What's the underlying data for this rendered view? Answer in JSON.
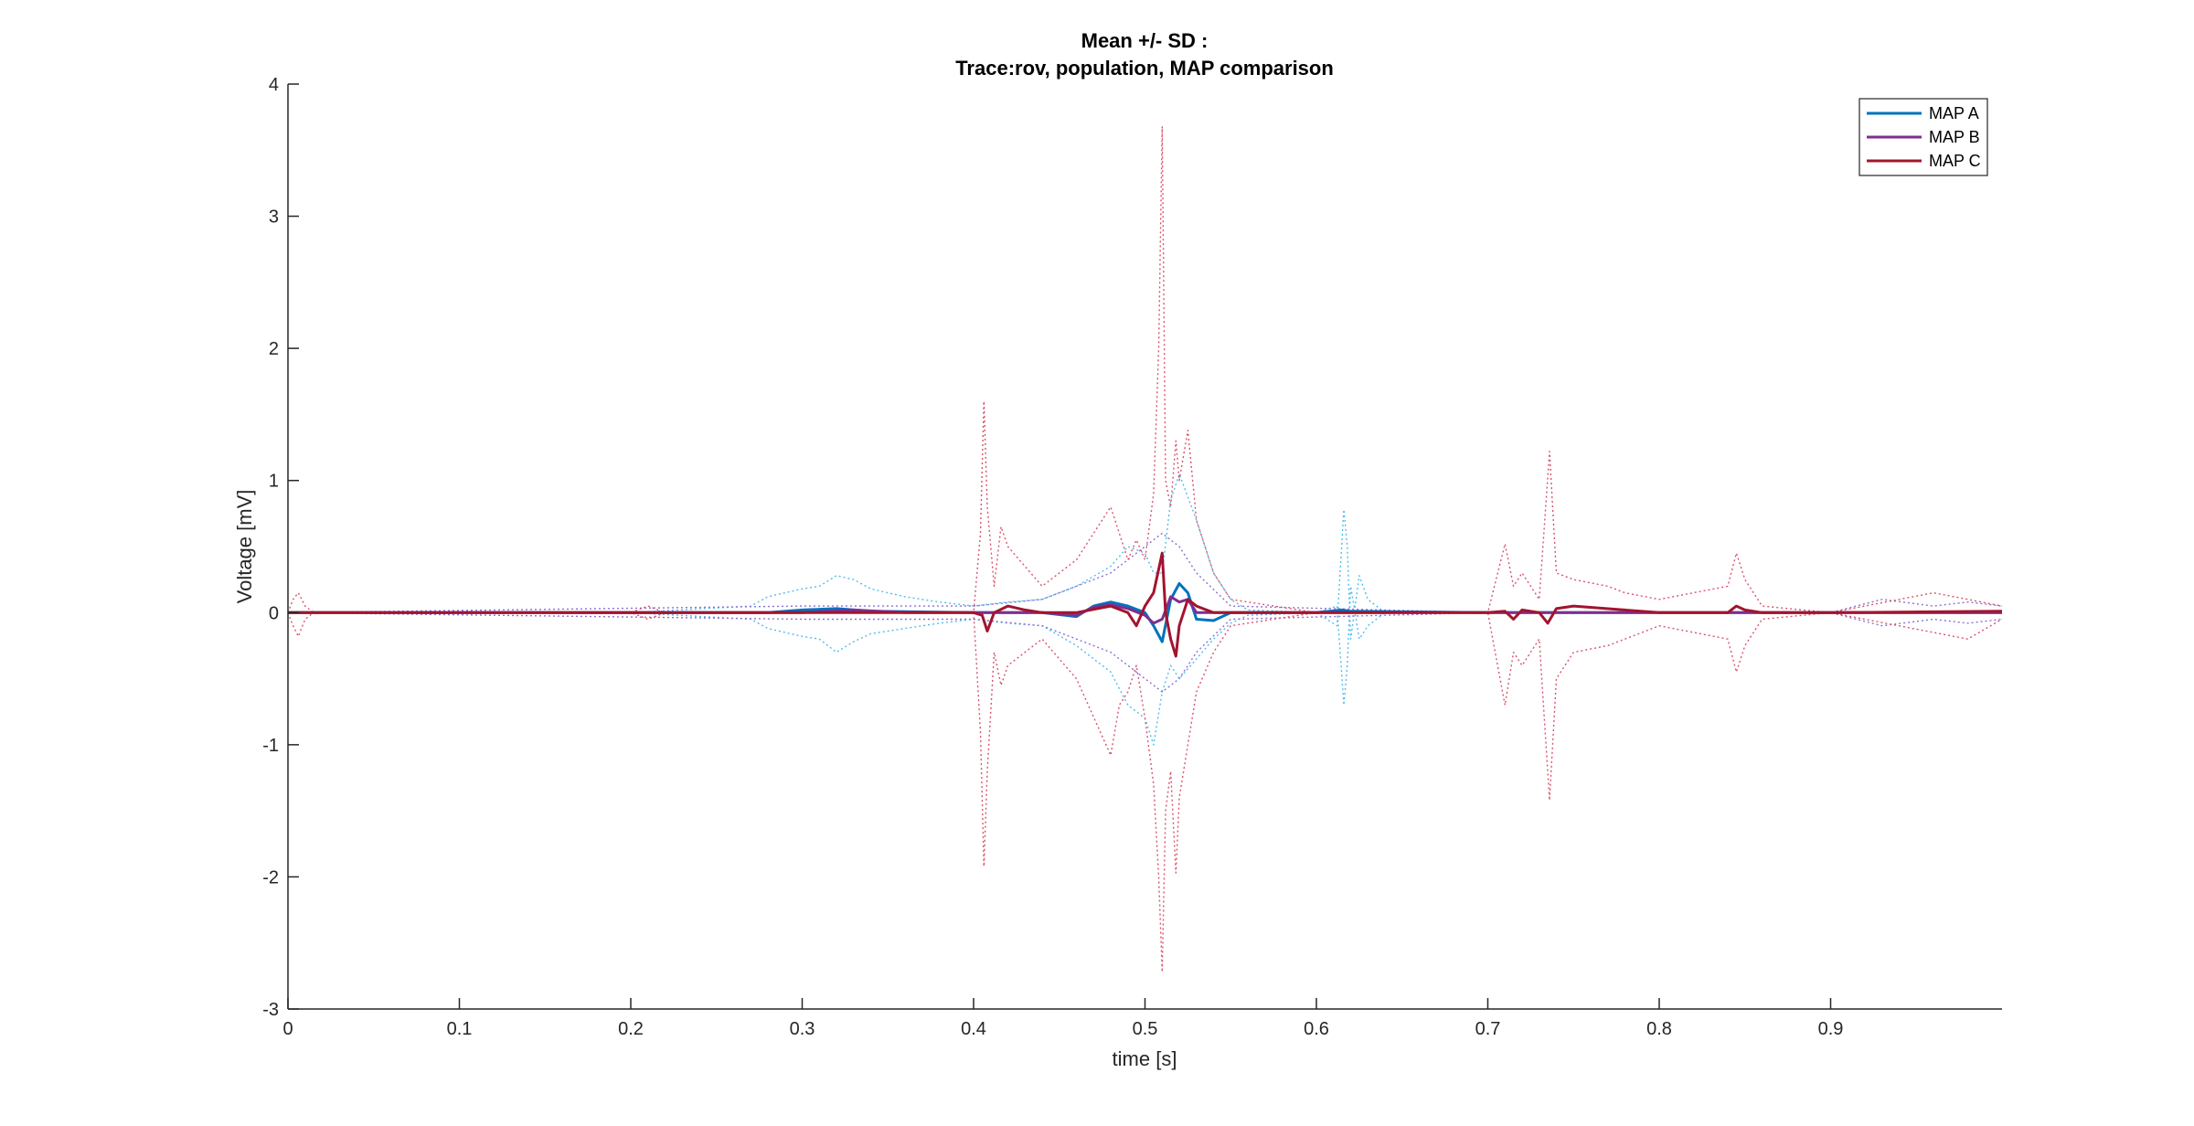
{
  "chart_data": {
    "type": "line",
    "title": "Mean +/- SD :",
    "subtitle": "Trace:rov, population, MAP comparison",
    "xlabel": "time [s]",
    "ylabel": "Voltage [mV]",
    "xlim": [
      0,
      1.0
    ],
    "ylim": [
      -3,
      4
    ],
    "xticks": [
      0,
      0.1,
      0.2,
      0.3,
      0.4,
      0.5,
      0.6,
      0.7,
      0.8,
      0.9
    ],
    "xtick_labels": [
      "0",
      "0.1",
      "0.2",
      "0.3",
      "0.4",
      "0.5",
      "0.6",
      "0.7",
      "0.8",
      "0.9"
    ],
    "yticks": [
      -3,
      -2,
      -1,
      0,
      1,
      2,
      3,
      4
    ],
    "ytick_labels": [
      "-3",
      "-2",
      "-1",
      "0",
      "1",
      "2",
      "3",
      "4"
    ],
    "grid": false,
    "legend_position": "top-right",
    "series": [
      {
        "name": "MAP A",
        "color": "#0072BD",
        "style": "solid",
        "x": [
          0,
          0.2,
          0.28,
          0.3,
          0.32,
          0.34,
          0.4,
          0.44,
          0.46,
          0.47,
          0.48,
          0.49,
          0.5,
          0.505,
          0.51,
          0.515,
          0.52,
          0.525,
          0.53,
          0.54,
          0.55,
          0.6,
          0.615,
          0.62,
          0.7,
          0.8,
          0.9,
          1.0
        ],
        "y": [
          0,
          0,
          0,
          0.02,
          0.03,
          0.01,
          0,
          0,
          -0.03,
          0.05,
          0.08,
          0.05,
          0,
          -0.1,
          -0.22,
          0.1,
          0.22,
          0.15,
          -0.05,
          -0.06,
          0,
          0,
          0.02,
          0.01,
          0,
          0,
          0,
          0
        ]
      },
      {
        "name": "",
        "color": "#4DBEEE",
        "style": "dotted",
        "x": [
          0,
          0.2,
          0.27,
          0.28,
          0.29,
          0.3,
          0.31,
          0.32,
          0.33,
          0.34,
          0.36,
          0.38,
          0.4,
          0.42,
          0.44,
          0.46,
          0.48,
          0.49,
          0.5,
          0.505,
          0.51,
          0.515,
          0.52,
          0.53,
          0.54,
          0.55,
          0.56,
          0.6,
          0.612,
          0.616,
          0.618,
          0.62,
          0.625,
          0.63,
          0.64,
          0.7,
          0.8,
          0.9,
          1.0
        ],
        "y": [
          0,
          0,
          0.05,
          0.12,
          0.15,
          0.18,
          0.2,
          0.28,
          0.25,
          0.18,
          0.12,
          0.08,
          0.05,
          0.08,
          0.1,
          0.2,
          0.35,
          0.5,
          0.45,
          0.3,
          0.3,
          0.85,
          1.05,
          0.7,
          0.3,
          0.1,
          0.02,
          0,
          -0.1,
          0.78,
          0.5,
          -0.2,
          0.28,
          0.1,
          0,
          0,
          0,
          0,
          0
        ]
      },
      {
        "name": "",
        "color": "#4DBEEE",
        "style": "dotted",
        "x": [
          0,
          0.2,
          0.27,
          0.28,
          0.29,
          0.3,
          0.31,
          0.32,
          0.33,
          0.34,
          0.36,
          0.38,
          0.4,
          0.42,
          0.44,
          0.46,
          0.48,
          0.49,
          0.5,
          0.505,
          0.51,
          0.515,
          0.52,
          0.53,
          0.54,
          0.55,
          0.56,
          0.6,
          0.612,
          0.616,
          0.618,
          0.62,
          0.625,
          0.63,
          0.64,
          0.7,
          0.8,
          0.9,
          1.0
        ],
        "y": [
          0,
          0,
          -0.05,
          -0.12,
          -0.15,
          -0.18,
          -0.2,
          -0.3,
          -0.22,
          -0.16,
          -0.12,
          -0.08,
          -0.05,
          -0.08,
          -0.1,
          -0.25,
          -0.45,
          -0.7,
          -0.8,
          -1.0,
          -0.6,
          -0.4,
          -0.5,
          -0.35,
          -0.2,
          -0.08,
          -0.02,
          0,
          0.05,
          -0.7,
          -0.4,
          0.2,
          -0.2,
          -0.1,
          0,
          0,
          0,
          0,
          0
        ]
      },
      {
        "name": "MAP B",
        "color": "#7E2F8E",
        "style": "solid",
        "x": [
          0,
          0.2,
          0.3,
          0.33,
          0.36,
          0.4,
          0.44,
          0.46,
          0.47,
          0.48,
          0.49,
          0.5,
          0.505,
          0.51,
          0.515,
          0.52,
          0.525,
          0.53,
          0.55,
          0.7,
          0.8,
          0.9,
          1.0
        ],
        "y": [
          0,
          0,
          0,
          0.02,
          0,
          0,
          0,
          -0.02,
          0.04,
          0.06,
          0.03,
          -0.02,
          -0.08,
          -0.05,
          0.12,
          0.08,
          0.1,
          0,
          0,
          0,
          0,
          0,
          0
        ]
      },
      {
        "name": "",
        "color": "#8E6FD0",
        "style": "dotted",
        "x": [
          0,
          0.3,
          0.35,
          0.4,
          0.44,
          0.46,
          0.48,
          0.49,
          0.5,
          0.51,
          0.52,
          0.53,
          0.55,
          0.7,
          0.9,
          0.93,
          0.96,
          0.98,
          1.0
        ],
        "y": [
          0,
          0.05,
          0.05,
          0.05,
          0.1,
          0.2,
          0.3,
          0.4,
          0.5,
          0.6,
          0.5,
          0.3,
          0.05,
          0,
          0,
          0.1,
          0.05,
          0.08,
          0.05
        ]
      },
      {
        "name": "",
        "color": "#8E6FD0",
        "style": "dotted",
        "x": [
          0,
          0.3,
          0.35,
          0.4,
          0.44,
          0.46,
          0.48,
          0.49,
          0.5,
          0.51,
          0.52,
          0.53,
          0.55,
          0.7,
          0.9,
          0.93,
          0.96,
          0.98,
          1.0
        ],
        "y": [
          0,
          -0.05,
          -0.05,
          -0.05,
          -0.1,
          -0.2,
          -0.3,
          -0.4,
          -0.5,
          -0.6,
          -0.5,
          -0.3,
          -0.05,
          0,
          0,
          -0.1,
          -0.05,
          -0.08,
          -0.05
        ]
      },
      {
        "name": "MAP C",
        "color": "#A2142F",
        "style": "solid",
        "x": [
          0,
          0.2,
          0.4,
          0.405,
          0.408,
          0.412,
          0.42,
          0.43,
          0.44,
          0.46,
          0.48,
          0.49,
          0.495,
          0.5,
          0.505,
          0.51,
          0.512,
          0.515,
          0.518,
          0.52,
          0.525,
          0.53,
          0.54,
          0.6,
          0.7,
          0.71,
          0.715,
          0.72,
          0.73,
          0.735,
          0.74,
          0.75,
          0.8,
          0.84,
          0.845,
          0.85,
          0.86,
          0.9,
          1.0
        ],
        "y": [
          0,
          0,
          0,
          -0.02,
          -0.14,
          0.0,
          0.05,
          0.02,
          0,
          0,
          0.05,
          0.0,
          -0.1,
          0.05,
          0.15,
          0.45,
          0.0,
          -0.2,
          -0.33,
          -0.1,
          0.1,
          0.05,
          0,
          0,
          0,
          0.01,
          -0.05,
          0.02,
          0.0,
          -0.08,
          0.03,
          0.05,
          0,
          0,
          0.05,
          0.02,
          0,
          0,
          0.01
        ]
      },
      {
        "name": "",
        "color": "#D9536B",
        "style": "dotted",
        "x": [
          0,
          0.003,
          0.006,
          0.01,
          0.015,
          0.2,
          0.21,
          0.22,
          0.4,
          0.404,
          0.406,
          0.408,
          0.412,
          0.416,
          0.42,
          0.44,
          0.46,
          0.48,
          0.485,
          0.49,
          0.495,
          0.5,
          0.505,
          0.508,
          0.51,
          0.512,
          0.515,
          0.518,
          0.52,
          0.525,
          0.53,
          0.54,
          0.55,
          0.6,
          0.7,
          0.71,
          0.715,
          0.72,
          0.73,
          0.736,
          0.74,
          0.75,
          0.77,
          0.78,
          0.8,
          0.84,
          0.845,
          0.85,
          0.86,
          0.9,
          0.96,
          0.98,
          1.0
        ],
        "y": [
          0,
          0.1,
          0.15,
          0.05,
          0,
          0,
          0.05,
          0,
          0,
          0.6,
          1.6,
          0.8,
          0.2,
          0.65,
          0.5,
          0.2,
          0.4,
          0.8,
          0.6,
          0.4,
          0.55,
          0.4,
          0.9,
          2.0,
          3.68,
          1.0,
          0.8,
          1.3,
          1.0,
          1.38,
          0.7,
          0.3,
          0.1,
          0,
          0,
          0.52,
          0.2,
          0.3,
          0.1,
          1.22,
          0.3,
          0.25,
          0.2,
          0.15,
          0.1,
          0.2,
          0.45,
          0.25,
          0.05,
          0,
          0.15,
          0.1,
          0.05
        ]
      },
      {
        "name": "",
        "color": "#D9536B",
        "style": "dotted",
        "x": [
          0,
          0.003,
          0.006,
          0.01,
          0.015,
          0.2,
          0.21,
          0.22,
          0.4,
          0.404,
          0.406,
          0.408,
          0.412,
          0.416,
          0.42,
          0.44,
          0.46,
          0.48,
          0.485,
          0.49,
          0.495,
          0.5,
          0.505,
          0.508,
          0.51,
          0.512,
          0.515,
          0.518,
          0.52,
          0.525,
          0.53,
          0.54,
          0.55,
          0.6,
          0.7,
          0.71,
          0.715,
          0.72,
          0.73,
          0.736,
          0.74,
          0.75,
          0.77,
          0.78,
          0.8,
          0.84,
          0.845,
          0.85,
          0.86,
          0.9,
          0.96,
          0.98,
          1.0
        ],
        "y": [
          0,
          -0.1,
          -0.18,
          -0.05,
          0,
          0,
          -0.05,
          0,
          0,
          -0.9,
          -1.92,
          -1.2,
          -0.3,
          -0.55,
          -0.4,
          -0.2,
          -0.5,
          -1.08,
          -0.7,
          -0.6,
          -0.4,
          -0.8,
          -1.3,
          -2.0,
          -2.72,
          -1.5,
          -1.2,
          -1.97,
          -1.4,
          -1.0,
          -0.6,
          -0.3,
          -0.1,
          0,
          0,
          -0.7,
          -0.3,
          -0.4,
          -0.2,
          -1.42,
          -0.5,
          -0.3,
          -0.25,
          -0.2,
          -0.1,
          -0.2,
          -0.45,
          -0.25,
          -0.05,
          0,
          -0.15,
          -0.2,
          -0.05
        ]
      }
    ]
  }
}
